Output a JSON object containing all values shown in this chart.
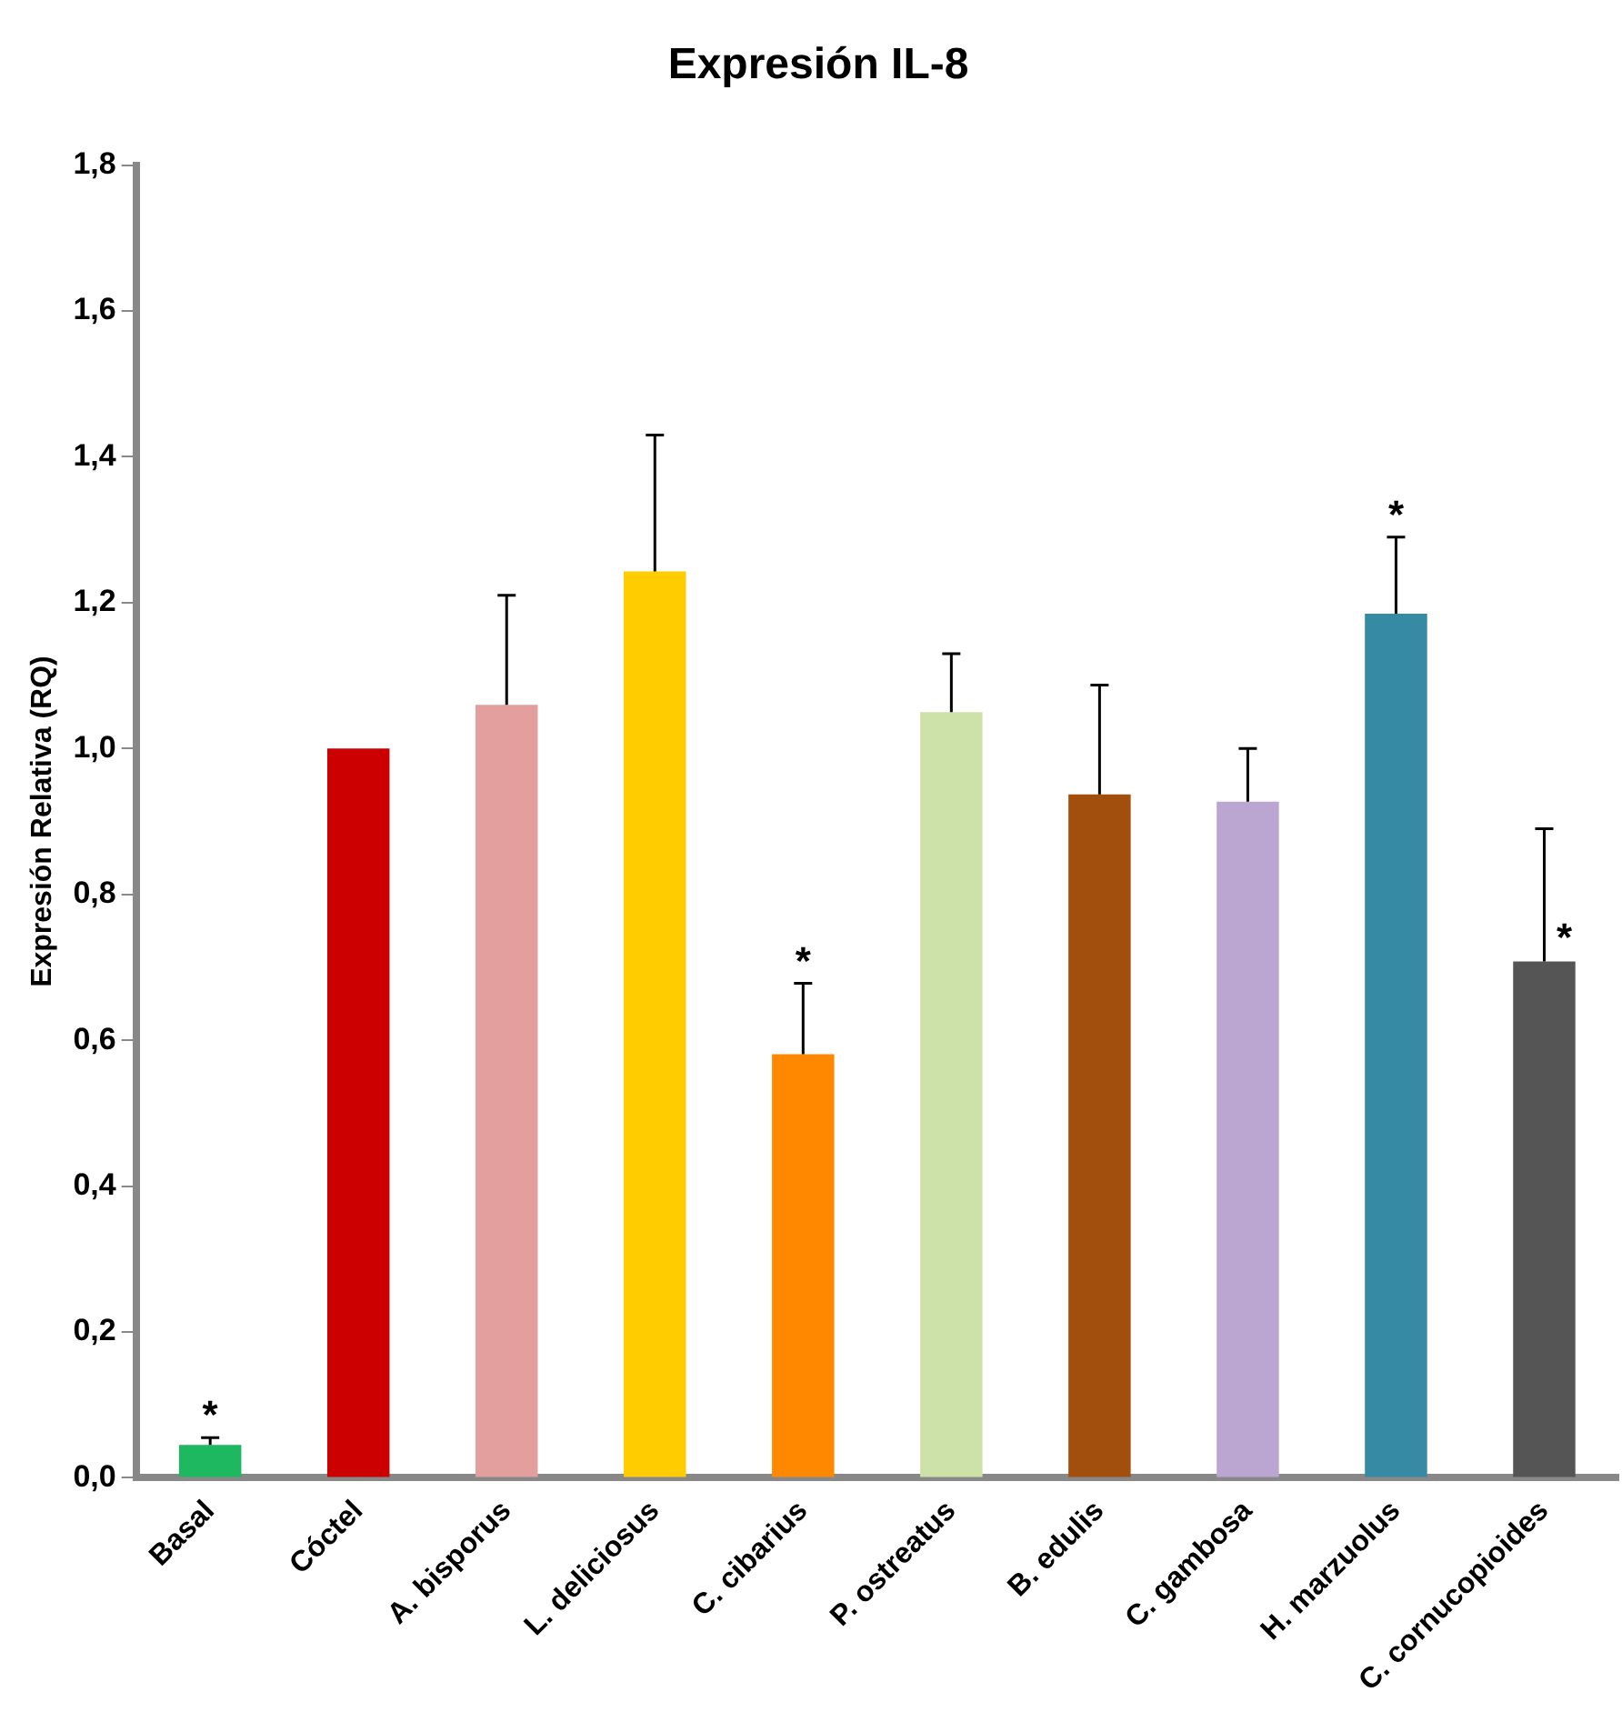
{
  "chart_data": {
    "type": "bar",
    "title": "Expresión IL-8",
    "ylabel": "Expresión Relativa (RQ)",
    "categories": [
      "Basal",
      "Cóctel",
      "A. bisporus",
      "L. deliciosus",
      "C. cibarius",
      "P. ostreatus",
      "B. edulis",
      "C. gambosa",
      "H. marzuolus",
      "C. cornucopioides"
    ],
    "values": [
      0.045,
      1.0,
      1.06,
      1.243,
      0.581,
      1.05,
      0.937,
      0.927,
      1.185,
      0.708
    ],
    "colors": [
      "#1db860",
      "#cc0000",
      "#e39e9e",
      "#ffcc00",
      "#ff8800",
      "#cde2a8",
      "#a24f0e",
      "#bba6d2",
      "#368aa4",
      "#555555"
    ],
    "errors": [
      [
        0.045,
        0.055
      ],
      null,
      [
        1.06,
        1.21
      ],
      [
        1.243,
        1.43
      ],
      [
        0.581,
        0.678
      ],
      [
        1.05,
        1.13
      ],
      [
        0.937,
        1.087
      ],
      [
        0.927,
        1.0
      ],
      [
        1.185,
        1.29
      ],
      [
        0.708,
        0.89
      ]
    ],
    "value_labels": [
      "*",
      null,
      null,
      null,
      "*",
      null,
      null,
      null,
      "*",
      "*"
    ],
    "ylim": [
      0,
      1.8
    ],
    "yticks": [
      {
        "value": 0,
        "label": "0,0"
      },
      {
        "value": 0.2,
        "label": "0,2"
      },
      {
        "value": 0.4,
        "label": "0,4"
      },
      {
        "value": 0.6,
        "label": "0,6"
      },
      {
        "value": 0.8,
        "label": "0,8"
      },
      {
        "value": 1.0,
        "label": "1,0"
      },
      {
        "value": 1.2,
        "label": "1,2"
      },
      {
        "value": 1.4,
        "label": "1,4"
      },
      {
        "value": 1.6,
        "label": "1,6"
      },
      {
        "value": 1.8,
        "label": "1,8"
      }
    ],
    "grid": false,
    "legend": false
  }
}
